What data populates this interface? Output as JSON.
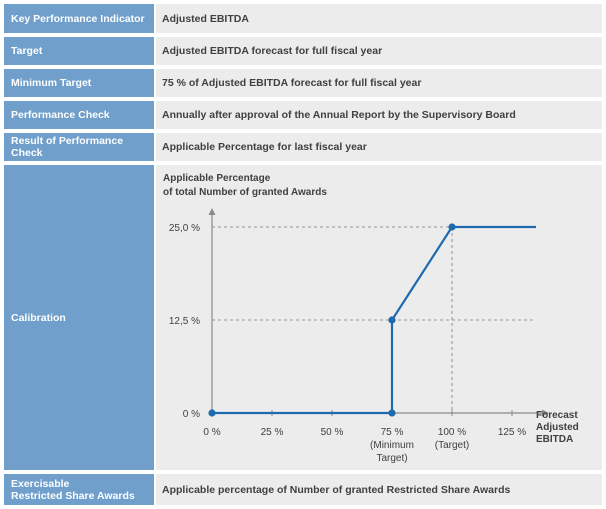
{
  "rows": [
    {
      "label": "Key Performance Indicator",
      "value": "Adjusted EBITDA"
    },
    {
      "label": "Target",
      "value": "Adjusted EBITDA forecast for full fiscal year"
    },
    {
      "label": "Minimum Target",
      "value": "75 % of Adjusted EBITDA forecast for full fiscal year"
    },
    {
      "label": "Performance Check",
      "value": "Annually after approval of the Annual Report by the Supervisory Board"
    },
    {
      "label": "Result of Performance Check",
      "value": "Applicable Percentage for last fiscal year"
    }
  ],
  "calibration": {
    "label": "Calibration"
  },
  "exercisable": {
    "label_line1": "Exercisable",
    "label_line2": "Restricted Share Awards",
    "value": "Applicable percentage of Number of granted Restricted Share Awards"
  },
  "chart_data": {
    "type": "line",
    "y_title_line1": "Applicable Percentage",
    "y_title_line2": "of total Number of granted Awards",
    "x_label_line1": "Forecast",
    "x_label_line2": "Adjusted",
    "x_label_line3": "EBITDA",
    "x_ticks": [
      {
        "value": 0,
        "label": "0 %"
      },
      {
        "value": 25,
        "label": "25 %"
      },
      {
        "value": 50,
        "label": "50 %"
      },
      {
        "value": 75,
        "label": "75 %",
        "sub1": "(Minimum",
        "sub2": "Target)"
      },
      {
        "value": 100,
        "label": "100 %",
        "sub1": "(Target)"
      },
      {
        "value": 125,
        "label": "125 %"
      }
    ],
    "y_ticks": [
      {
        "value": 0,
        "label": "0 %"
      },
      {
        "value": 12.5,
        "label": "12,5 %"
      },
      {
        "value": 25,
        "label": "25,0 %"
      }
    ],
    "xlim": [
      0,
      135
    ],
    "ylim": [
      0,
      25
    ],
    "series": [
      {
        "x": [
          0,
          75,
          75,
          100,
          135
        ],
        "y": [
          0,
          0,
          12.5,
          25,
          25
        ]
      }
    ],
    "markers": [
      {
        "x": 0,
        "y": 0
      },
      {
        "x": 75,
        "y": 0
      },
      {
        "x": 75,
        "y": 12.5
      },
      {
        "x": 100,
        "y": 25
      }
    ],
    "guides": [
      {
        "x": 75,
        "y": 12.5
      },
      {
        "x": 100,
        "y": 25
      }
    ],
    "colors": {
      "line": "#1f6aaf",
      "axis": "#8a8a8a",
      "guide": "#7a7a7a"
    }
  }
}
